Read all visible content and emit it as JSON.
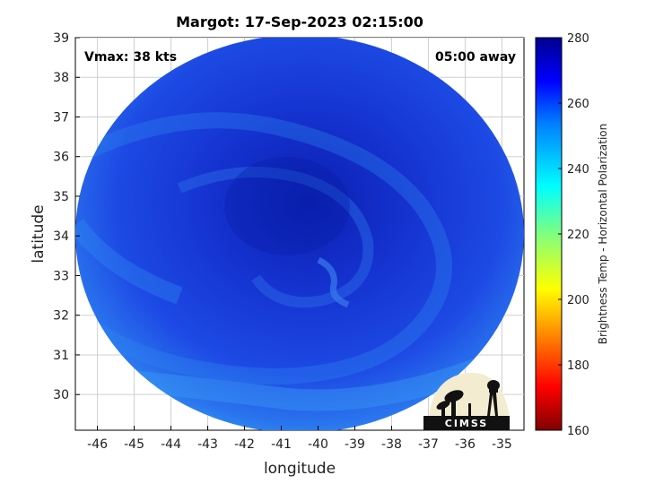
{
  "title": "Margot: 17-Sep-2023 02:15:00",
  "vmax_label": "Vmax: 38 kts",
  "time_away_label": "05:00 away",
  "xlabel": "longitude",
  "ylabel": "latitude",
  "colorbar_label": "Brightness Temp - Horizontal Polarization",
  "logo_text": "CIMSS",
  "map": {
    "xlim": [
      -46.6,
      -34.4
    ],
    "ylim": [
      29.1,
      39
    ],
    "x_ticks": [
      -46,
      -45,
      -44,
      -43,
      -42,
      -41,
      -40,
      -39,
      -38,
      -37,
      -36,
      -35
    ],
    "y_ticks": [
      30,
      31,
      32,
      33,
      34,
      35,
      36,
      37,
      38,
      39
    ],
    "grid": true,
    "swath_center": [
      -40.5,
      34.05
    ],
    "storm_center": [
      -40.4,
      34.3
    ]
  },
  "colorbar": {
    "range": [
      160,
      280
    ],
    "ticks": [
      160,
      180,
      200,
      220,
      240,
      260,
      280
    ],
    "colormap": "jet"
  },
  "colors": {
    "swath_base": "#1a3fe6",
    "swath_dark": "#0b22b8",
    "swath_light": "#2f86f2"
  }
}
